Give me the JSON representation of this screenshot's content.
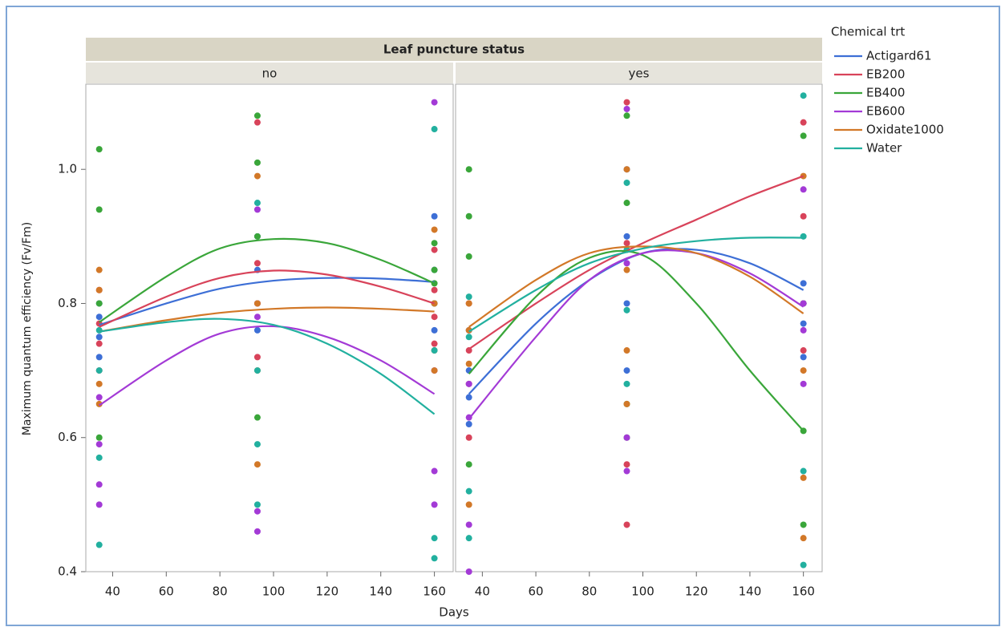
{
  "chart_data": {
    "type": "scatter",
    "title": "Leaf puncture status",
    "x_label": "Days",
    "y_label": "Maximum quantum efficiency (Fv/Fm)",
    "legend_title": "Chemical trt",
    "xlim": [
      30,
      167
    ],
    "xticks": [
      40,
      60,
      80,
      100,
      120,
      140,
      160
    ],
    "ylim": [
      0.4,
      1.127
    ],
    "yticks": [
      0.4,
      0.6,
      0.8,
      {
        "value": 1,
        "label": "1.0"
      }
    ],
    "series": [
      {
        "name": "Actigard61",
        "color": "#3d6fd6"
      },
      {
        "name": "EB200",
        "color": "#d8435a"
      },
      {
        "name": "EB400",
        "color": "#3aa63a"
      },
      {
        "name": "EB600",
        "color": "#a33ad6"
      },
      {
        "name": "Oxidate1000",
        "color": "#d27828"
      },
      {
        "name": "Water",
        "color": "#22b09f"
      }
    ],
    "panels": [
      {
        "label": "no",
        "series": [
          {
            "x": [
              35,
              35,
              35,
              35,
              94,
              94,
              94,
              94,
              160,
              160,
              160,
              160
            ],
            "values": [
              0.78,
              0.75,
              0.8,
              0.72,
              0.85,
              0.8,
              0.9,
              0.76,
              0.93,
              0.85,
              0.8,
              0.76
            ],
            "fit_x": [
              35,
              60,
              80,
              100,
              120,
              140,
              160
            ],
            "fit_values": [
              0.768,
              0.8,
              0.822,
              0.834,
              0.838,
              0.837,
              0.832
            ]
          },
          {
            "x": [
              35,
              35,
              35,
              35,
              94,
              94,
              94,
              94,
              160,
              160,
              160,
              160
            ],
            "values": [
              0.77,
              0.74,
              0.82,
              0.7,
              1.07,
              0.86,
              0.8,
              0.72,
              0.88,
              0.82,
              0.78,
              0.74
            ],
            "fit_x": [
              35,
              60,
              80,
              100,
              120,
              140,
              160
            ],
            "fit_values": [
              0.765,
              0.81,
              0.838,
              0.849,
              0.843,
              0.825,
              0.8
            ]
          },
          {
            "x": [
              35,
              35,
              35,
              35,
              94,
              94,
              94,
              94,
              160,
              160,
              160,
              160
            ],
            "values": [
              1.03,
              0.94,
              0.8,
              0.6,
              1.08,
              1.01,
              0.9,
              0.63,
              0.89,
              0.85,
              0.83,
              0.8
            ],
            "fit_x": [
              35,
              60,
              80,
              100,
              120,
              140,
              160
            ],
            "fit_values": [
              0.772,
              0.84,
              0.882,
              0.896,
              0.89,
              0.865,
              0.83
            ]
          },
          {
            "x": [
              35,
              35,
              35,
              35,
              94,
              94,
              94,
              94,
              160,
              160,
              160,
              160
            ],
            "values": [
              0.66,
              0.59,
              0.53,
              0.5,
              0.94,
              0.78,
              0.49,
              0.46,
              1.1,
              0.7,
              0.55,
              0.5
            ],
            "fit_x": [
              35,
              60,
              80,
              100,
              120,
              140,
              160
            ],
            "fit_values": [
              0.648,
              0.715,
              0.755,
              0.766,
              0.75,
              0.715,
              0.665
            ]
          },
          {
            "x": [
              35,
              35,
              35,
              35,
              94,
              94,
              94,
              94,
              160,
              160,
              160,
              160
            ],
            "values": [
              0.85,
              0.82,
              0.68,
              0.65,
              0.99,
              0.8,
              0.7,
              0.56,
              0.91,
              0.8,
              0.73,
              0.7
            ],
            "fit_x": [
              35,
              60,
              80,
              100,
              120,
              140,
              160
            ],
            "fit_values": [
              0.758,
              0.775,
              0.786,
              0.792,
              0.794,
              0.792,
              0.788
            ]
          },
          {
            "x": [
              35,
              35,
              35,
              35,
              94,
              94,
              94,
              94,
              160,
              160,
              160,
              160
            ],
            "values": [
              0.76,
              0.7,
              0.57,
              0.44,
              0.95,
              0.7,
              0.59,
              0.5,
              1.06,
              0.73,
              0.45,
              0.42
            ],
            "fit_x": [
              35,
              60,
              80,
              100,
              120,
              140,
              160
            ],
            "fit_values": [
              0.758,
              0.772,
              0.777,
              0.768,
              0.74,
              0.695,
              0.635
            ]
          }
        ]
      },
      {
        "label": "yes",
        "series": [
          {
            "x": [
              35,
              35,
              35,
              35,
              94,
              94,
              94,
              94,
              160,
              160,
              160,
              160
            ],
            "values": [
              0.7,
              0.66,
              0.76,
              0.62,
              1.0,
              0.9,
              0.8,
              0.7,
              0.83,
              0.8,
              0.77,
              0.72
            ],
            "fit_x": [
              35,
              60,
              80,
              100,
              120,
              140,
              160
            ],
            "fit_values": [
              0.665,
              0.77,
              0.835,
              0.875,
              0.88,
              0.86,
              0.82
            ]
          },
          {
            "x": [
              35,
              35,
              35,
              35,
              94,
              94,
              94,
              94,
              160,
              160,
              160,
              160
            ],
            "values": [
              0.8,
              0.73,
              0.68,
              0.6,
              1.1,
              0.89,
              0.56,
              0.47,
              1.07,
              0.93,
              0.8,
              0.73
            ],
            "fit_x": [
              35,
              60,
              80,
              100,
              120,
              140,
              160
            ],
            "fit_values": [
              0.732,
              0.8,
              0.85,
              0.89,
              0.925,
              0.96,
              0.99
            ]
          },
          {
            "x": [
              35,
              35,
              35,
              35,
              94,
              94,
              94,
              94,
              160,
              160,
              160,
              160
            ],
            "values": [
              1.0,
              0.93,
              0.87,
              0.56,
              1.08,
              0.95,
              0.65,
              0.6,
              1.05,
              0.8,
              0.61,
              0.47
            ],
            "fit_x": [
              35,
              60,
              80,
              100,
              120,
              140,
              160
            ],
            "fit_values": [
              0.695,
              0.81,
              0.868,
              0.872,
              0.8,
              0.7,
              0.61
            ]
          },
          {
            "x": [
              35,
              35,
              35,
              35,
              94,
              94,
              94,
              94,
              160,
              160,
              160,
              160
            ],
            "values": [
              0.68,
              0.63,
              0.47,
              0.4,
              1.09,
              0.86,
              0.6,
              0.55,
              0.97,
              0.8,
              0.76,
              0.68
            ],
            "fit_x": [
              35,
              60,
              80,
              100,
              120,
              140,
              160
            ],
            "fit_values": [
              0.628,
              0.75,
              0.835,
              0.875,
              0.875,
              0.845,
              0.795
            ]
          },
          {
            "x": [
              35,
              35,
              35,
              35,
              94,
              94,
              94,
              94,
              160,
              160,
              160,
              160
            ],
            "values": [
              0.8,
              0.76,
              0.71,
              0.5,
              1.0,
              0.85,
              0.73,
              0.65,
              0.99,
              0.7,
              0.54,
              0.45
            ],
            "fit_x": [
              35,
              60,
              80,
              100,
              120,
              140,
              160
            ],
            "fit_values": [
              0.765,
              0.835,
              0.875,
              0.885,
              0.875,
              0.84,
              0.785
            ]
          },
          {
            "x": [
              35,
              35,
              35,
              35,
              94,
              94,
              94,
              94,
              160,
              160,
              160,
              160
            ],
            "values": [
              0.81,
              0.75,
              0.52,
              0.45,
              0.98,
              0.88,
              0.79,
              0.68,
              1.11,
              0.9,
              0.55,
              0.41
            ],
            "fit_x": [
              35,
              60,
              80,
              100,
              120,
              140,
              160
            ],
            "fit_values": [
              0.758,
              0.82,
              0.86,
              0.882,
              0.893,
              0.898,
              0.898
            ]
          }
        ]
      }
    ]
  }
}
